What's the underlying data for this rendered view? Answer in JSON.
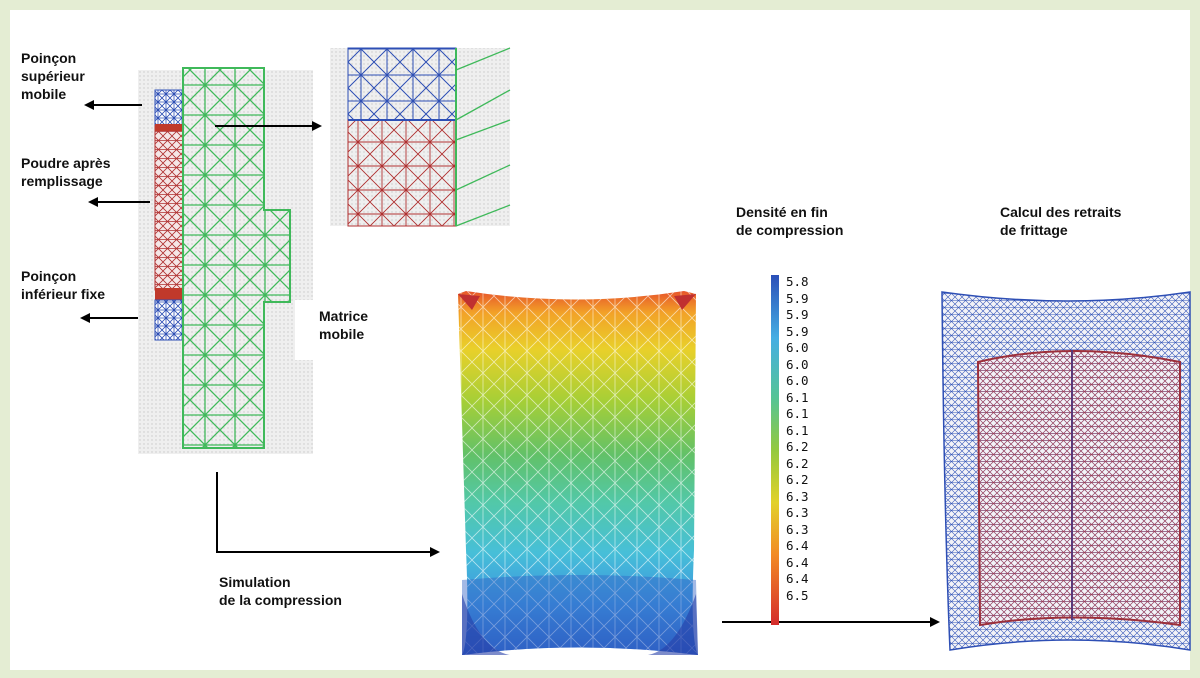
{
  "labels": {
    "poincon_superieur": "Poinçon\nsupérieur\nmobile",
    "poudre": "Poudre après\nremplissage",
    "poincon_inferieur": "Poinçon\ninférieur fixe",
    "matrice": "Matrice\nmobile",
    "simulation": "Simulation\nde la compression",
    "densite": "Densité en fin\nde compression",
    "retraits": "Calcul des retraits\nde frittage"
  },
  "scale": {
    "values": [
      "5.8",
      "5.9",
      "5.9",
      "5.9",
      "6.0",
      "6.0",
      "6.0",
      "6.1",
      "6.1",
      "6.1",
      "6.2",
      "6.2",
      "6.2",
      "6.3",
      "6.3",
      "6.3",
      "6.4",
      "6.4",
      "6.4",
      "6.5"
    ],
    "colors": [
      "#2a4fb8",
      "#2f6fcf",
      "#3a8fde",
      "#45aee3",
      "#4cc4d6",
      "#52c9b8",
      "#55c496",
      "#5cbf6c",
      "#78c34e",
      "#93c93e",
      "#b0cf34",
      "#cbd42e",
      "#e2d12a",
      "#f0c028",
      "#f3a626",
      "#f28a25",
      "#ef6e25",
      "#e65427",
      "#dd3d2a",
      "#d42c2c"
    ]
  },
  "colors": {
    "background": "#e4edd3",
    "mesh_green": "#3fb95a",
    "mesh_blue": "#2e4fb5",
    "mesh_red": "#b03030"
  }
}
